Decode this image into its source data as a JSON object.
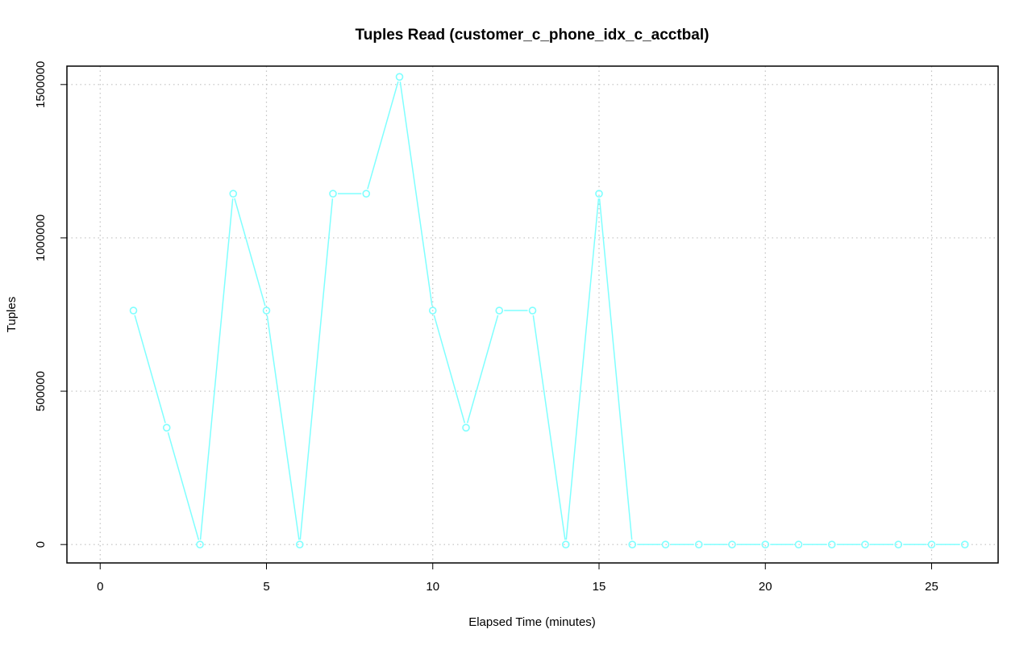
{
  "chart_data": {
    "type": "line",
    "title": "Tuples Read (customer_c_phone_idx_c_acctbal)",
    "xlabel": "Elapsed Time (minutes)",
    "ylabel": "Tuples",
    "xlim": [
      -1,
      27
    ],
    "ylim": [
      -60000,
      1560000
    ],
    "x_ticks": [
      0,
      5,
      10,
      15,
      20,
      25
    ],
    "y_ticks": [
      0,
      500000,
      1000000,
      1500000
    ],
    "x_tick_labels": [
      "0",
      "5",
      "10",
      "15",
      "20",
      "25"
    ],
    "y_tick_labels": [
      "0",
      "500000",
      "1000000",
      "1500000"
    ],
    "grid": true,
    "series": [
      {
        "color": "#7fffff",
        "marker": "open-circle",
        "x": [
          1,
          2,
          3,
          4,
          5,
          6,
          7,
          8,
          9,
          10,
          11,
          12,
          13,
          14,
          15,
          16,
          17,
          18,
          19,
          20,
          21,
          22,
          23,
          24,
          25,
          26
        ],
        "y": [
          763000,
          381000,
          0,
          1144000,
          763000,
          0,
          1144000,
          1144000,
          1525000,
          763000,
          381000,
          763000,
          763000,
          0,
          1144000,
          0,
          0,
          0,
          0,
          0,
          0,
          0,
          0,
          0,
          0,
          0
        ]
      }
    ]
  }
}
